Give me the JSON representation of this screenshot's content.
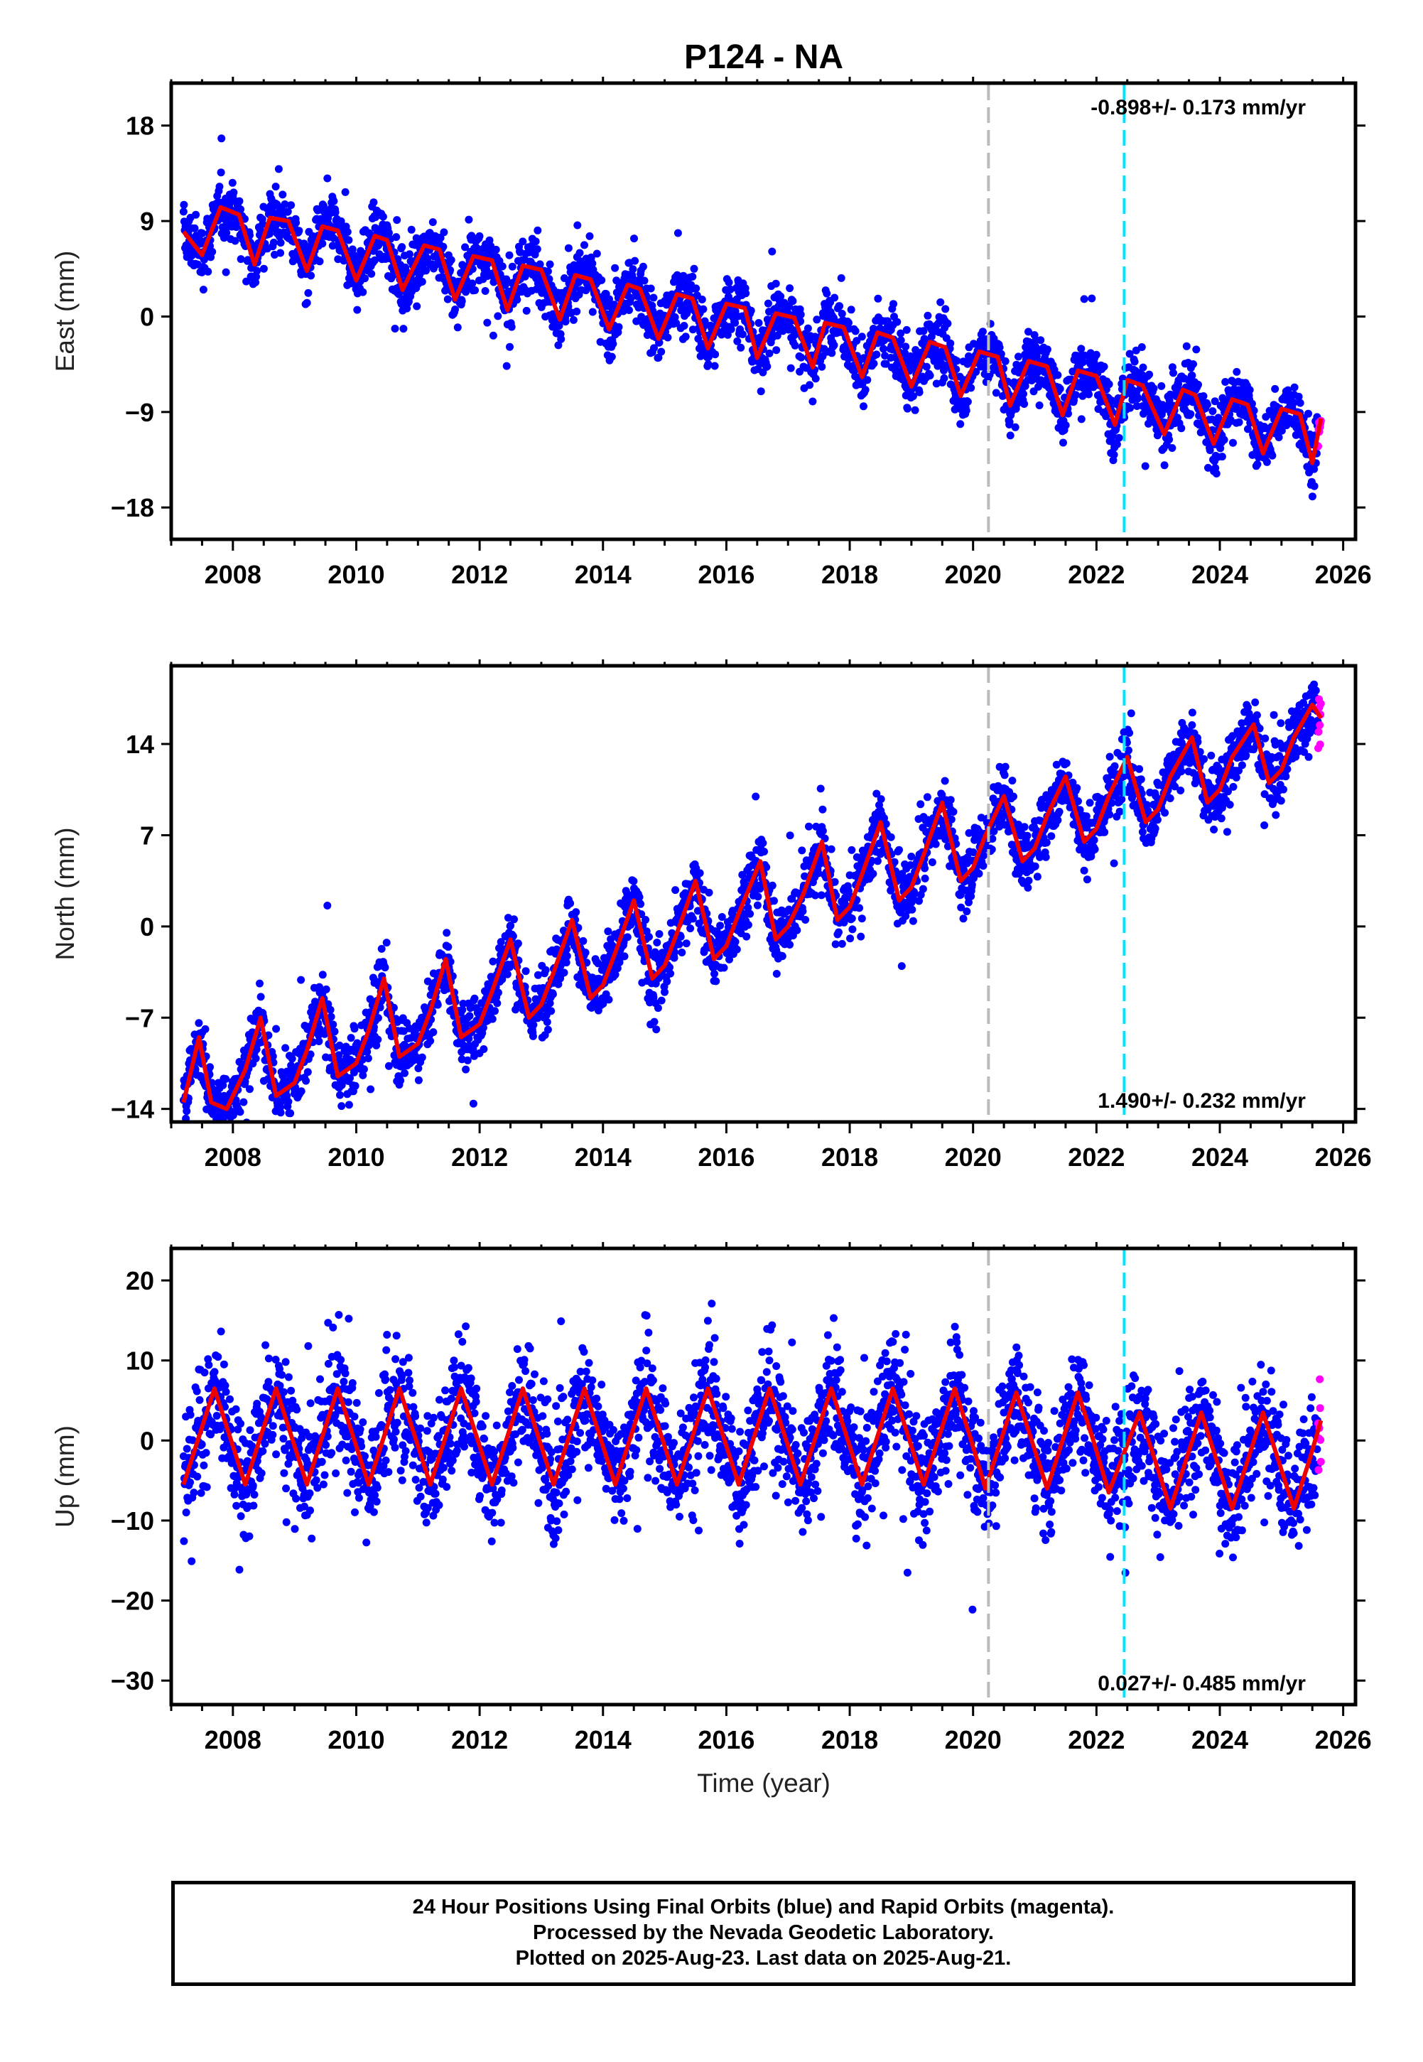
{
  "chart_data": {
    "type": "scatter",
    "title": "P124 - NA",
    "xlabel": "Time (year)",
    "xlim": [
      2007.0,
      2026.2
    ],
    "xticks": [
      2008,
      2010,
      2012,
      2014,
      2016,
      2018,
      2020,
      2022,
      2024,
      2026
    ],
    "xtick_labels": [
      "2008",
      "2010",
      "2012",
      "2014",
      "2016",
      "2018",
      "2020",
      "2022",
      "2024",
      "2026"
    ],
    "data_span": [
      2007.2,
      2025.64
    ],
    "rapid_span": [
      2025.5,
      2025.64
    ],
    "reference_lines": [
      {
        "x": 2020.25,
        "color": "#bbbbbb",
        "style": "dashed"
      },
      {
        "x": 2022.45,
        "color": "#00e5ff",
        "style": "dashed"
      }
    ],
    "colors": {
      "final": "#0000ff",
      "rapid": "#ff00ff",
      "model": "#ee0000"
    },
    "panels": [
      {
        "component": "east",
        "ylabel": "East (mm)",
        "ylim": [
          -21,
          22
        ],
        "yticks": [
          18,
          9,
          0,
          -9,
          -18
        ],
        "ytick_labels": [
          "18",
          "9",
          "0",
          "−9",
          "−18"
        ],
        "rate_text": "-0.898+/- 0.173 mm/yr",
        "rate_position": "top-right",
        "series": [
          {
            "name": "Model",
            "x": [
              2007.2,
              2007.5,
              2007.8,
              2008.1,
              2008.35,
              2008.6,
              2008.9,
              2009.2,
              2009.45,
              2009.7,
              2010.0,
              2010.3,
              2010.5,
              2010.75,
              2011.1,
              2011.35,
              2011.6,
              2011.9,
              2012.2,
              2012.45,
              2012.7,
              2013.0,
              2013.3,
              2013.55,
              2013.8,
              2014.1,
              2014.4,
              2014.6,
              2014.9,
              2015.2,
              2015.45,
              2015.7,
              2016.0,
              2016.3,
              2016.5,
              2016.8,
              2017.1,
              2017.4,
              2017.6,
              2017.9,
              2018.2,
              2018.45,
              2018.7,
              2019.0,
              2019.3,
              2019.55,
              2019.8,
              2020.1,
              2020.4,
              2020.6,
              2020.9,
              2021.2,
              2021.45,
              2021.7,
              2022.0,
              2022.3,
              2022.5,
              2022.75,
              2023.1,
              2023.4,
              2023.6,
              2023.9,
              2024.2,
              2024.45,
              2024.7,
              2025.0,
              2025.3,
              2025.5,
              2025.64
            ],
            "y": [
              8.0,
              5.8,
              10.3,
              9.6,
              4.9,
              9.3,
              9.0,
              4.3,
              8.5,
              8.1,
              3.4,
              7.6,
              7.2,
              2.5,
              6.7,
              6.3,
              1.6,
              5.7,
              5.3,
              0.6,
              4.8,
              4.4,
              -0.3,
              3.9,
              3.5,
              -1.2,
              3.0,
              2.6,
              -2.1,
              2.1,
              1.7,
              -3.0,
              1.2,
              0.8,
              -3.9,
              0.3,
              -0.1,
              -4.8,
              -0.6,
              -1.0,
              -5.7,
              -1.5,
              -2.0,
              -6.6,
              -2.4,
              -2.9,
              -7.5,
              -3.3,
              -3.8,
              -8.4,
              -4.2,
              -4.7,
              -9.3,
              -5.1,
              -5.6,
              -10.2,
              -6.0,
              -6.5,
              -11.1,
              -6.9,
              -7.4,
              -12.0,
              -7.8,
              -8.3,
              -12.9,
              -8.7,
              -9.2,
              -13.8,
              -9.6
            ]
          }
        ]
      },
      {
        "component": "north",
        "ylabel": "North (mm)",
        "ylim": [
          -15,
          20
        ],
        "yticks": [
          14,
          7,
          0,
          -7,
          -14
        ],
        "ytick_labels": [
          "14",
          "7",
          "0",
          "−7",
          "−14"
        ],
        "rate_text": "1.490+/- 0.232 mm/yr",
        "rate_position": "bottom-right",
        "series": [
          {
            "name": "Model",
            "x": [
              2007.2,
              2007.45,
              2007.65,
              2007.9,
              2008.2,
              2008.45,
              2008.7,
              2009.0,
              2009.2,
              2009.45,
              2009.7,
              2010.0,
              2010.2,
              2010.45,
              2010.7,
              2011.0,
              2011.2,
              2011.45,
              2011.7,
              2012.0,
              2012.2,
              2012.5,
              2012.8,
              2013.0,
              2013.2,
              2013.5,
              2013.8,
              2014.0,
              2014.2,
              2014.5,
              2014.8,
              2015.0,
              2015.2,
              2015.5,
              2015.8,
              2016.0,
              2016.2,
              2016.55,
              2016.8,
              2017.0,
              2017.25,
              2017.55,
              2017.8,
              2018.0,
              2018.2,
              2018.5,
              2018.8,
              2019.0,
              2019.2,
              2019.5,
              2019.8,
              2020.0,
              2020.2,
              2020.5,
              2020.8,
              2021.0,
              2021.2,
              2021.5,
              2021.8,
              2022.0,
              2022.2,
              2022.5,
              2022.8,
              2023.0,
              2023.2,
              2023.55,
              2023.8,
              2024.0,
              2024.2,
              2024.55,
              2024.8,
              2025.0,
              2025.2,
              2025.5,
              2025.64
            ],
            "y": [
              -13.5,
              -8.5,
              -13.5,
              -14.0,
              -11.0,
              -7.0,
              -13.0,
              -12.0,
              -9.5,
              -5.5,
              -11.5,
              -10.5,
              -8.0,
              -4.0,
              -10.0,
              -9.0,
              -6.5,
              -2.5,
              -8.5,
              -7.5,
              -5.0,
              -1.0,
              -7.0,
              -6.0,
              -3.5,
              0.5,
              -5.5,
              -4.5,
              -2.0,
              2.0,
              -4.0,
              -3.0,
              -0.5,
              3.5,
              -2.5,
              -1.5,
              1.0,
              5.0,
              -1.0,
              0.0,
              2.5,
              6.5,
              0.5,
              1.5,
              4.0,
              8.0,
              2.0,
              3.0,
              5.5,
              9.5,
              3.5,
              4.5,
              7.0,
              10.0,
              5.0,
              6.0,
              8.5,
              11.5,
              6.5,
              7.5,
              10.0,
              13.0,
              8.0,
              9.0,
              11.5,
              14.5,
              9.5,
              10.5,
              13.0,
              15.5,
              11.0,
              12.0,
              14.5,
              17.0,
              16.0
            ]
          }
        ]
      },
      {
        "component": "up",
        "ylabel": "Up (mm)",
        "ylim": [
          -33,
          24
        ],
        "yticks": [
          20,
          10,
          0,
          -10,
          -20,
          -30
        ],
        "ytick_labels": [
          "20",
          "10",
          "0",
          "−10",
          "−20",
          "−30"
        ],
        "rate_text": "0.027+/- 0.485 mm/yr",
        "rate_position": "bottom-right",
        "series": [
          {
            "name": "Model",
            "x": [
              2007.2,
              2007.45,
              2007.7,
              2007.95,
              2008.2,
              2008.45,
              2008.7,
              2008.95,
              2009.2,
              2009.45,
              2009.7,
              2009.95,
              2010.2,
              2010.45,
              2010.7,
              2010.95,
              2011.2,
              2011.45,
              2011.7,
              2011.95,
              2012.2,
              2012.45,
              2012.7,
              2012.95,
              2013.2,
              2013.45,
              2013.7,
              2013.95,
              2014.2,
              2014.45,
              2014.7,
              2014.95,
              2015.2,
              2015.45,
              2015.7,
              2015.95,
              2016.2,
              2016.45,
              2016.7,
              2016.95,
              2017.2,
              2017.45,
              2017.7,
              2017.95,
              2018.2,
              2018.45,
              2018.7,
              2018.95,
              2019.2,
              2019.45,
              2019.7,
              2019.95,
              2020.2,
              2020.45,
              2020.7,
              2020.95,
              2021.2,
              2021.45,
              2021.7,
              2021.95,
              2022.2,
              2022.45,
              2022.7,
              2022.95,
              2023.2,
              2023.45,
              2023.7,
              2023.95,
              2024.2,
              2024.45,
              2024.7,
              2024.95,
              2025.2,
              2025.45,
              2025.64
            ],
            "y": [
              -5.5,
              0.5,
              6.5,
              0.5,
              -5.5,
              0.5,
              6.5,
              0.5,
              -5.5,
              0.5,
              6.5,
              0.5,
              -5.5,
              0.5,
              6.5,
              0.5,
              -5.5,
              0.5,
              6.5,
              0.5,
              -5.5,
              0.5,
              6.5,
              0.5,
              -5.5,
              0.5,
              6.5,
              0.5,
              -5.5,
              0.5,
              6.5,
              0.5,
              -5.5,
              0.5,
              6.5,
              0.5,
              -5.5,
              0.5,
              6.5,
              0.5,
              -5.5,
              0.5,
              6.5,
              0.5,
              -5.5,
              0.5,
              6.5,
              0.5,
              -5.5,
              0.5,
              6.5,
              0.5,
              -6.0,
              0.0,
              6.0,
              0.0,
              -6.0,
              0.0,
              6.0,
              0.0,
              -6.5,
              -1.5,
              3.5,
              -2.5,
              -8.5,
              -2.5,
              3.5,
              -2.5,
              -8.5,
              -2.5,
              3.5,
              -2.5,
              -8.5,
              -2.5,
              2.5
            ]
          }
        ]
      }
    ]
  },
  "footer": {
    "line1": "24 Hour Positions Using Final Orbits (blue) and Rapid Orbits (magenta).",
    "line2": "Processed by the Nevada Geodetic Laboratory.",
    "line3": "Plotted on 2025-Aug-23. Last data on 2025-Aug-21."
  }
}
